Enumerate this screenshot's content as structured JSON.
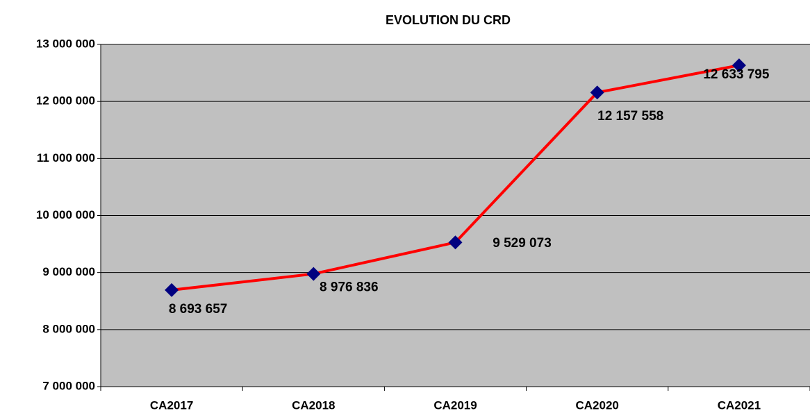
{
  "chart_data": {
    "type": "line",
    "title": "EVOLUTION DU CRD",
    "categories": [
      "CA2017",
      "CA2018",
      "CA2019",
      "CA2020",
      "CA2021"
    ],
    "series": [
      {
        "name": "CRD",
        "color": "#ff0000",
        "marker_color": "#000080",
        "values": [
          8693657,
          8976836,
          9529073,
          12157558,
          12633795
        ],
        "value_labels": [
          "8 693 657",
          "8 976 836",
          "9 529 073",
          "12 157 558",
          "12 633 795"
        ]
      }
    ],
    "ylim": [
      7000000,
      13000000
    ],
    "yticks": [
      {
        "value": 7000000,
        "label": "7 000 000"
      },
      {
        "value": 8000000,
        "label": "8 000 000"
      },
      {
        "value": 9000000,
        "label": "9 000 000"
      },
      {
        "value": 10000000,
        "label": "10 000 000"
      },
      {
        "value": 11000000,
        "label": "11 000 000"
      },
      {
        "value": 12000000,
        "label": "12 000 000"
      },
      {
        "value": 13000000,
        "label": "13 000 000"
      }
    ],
    "grid": true,
    "plot_background": "#c0c0c0"
  }
}
